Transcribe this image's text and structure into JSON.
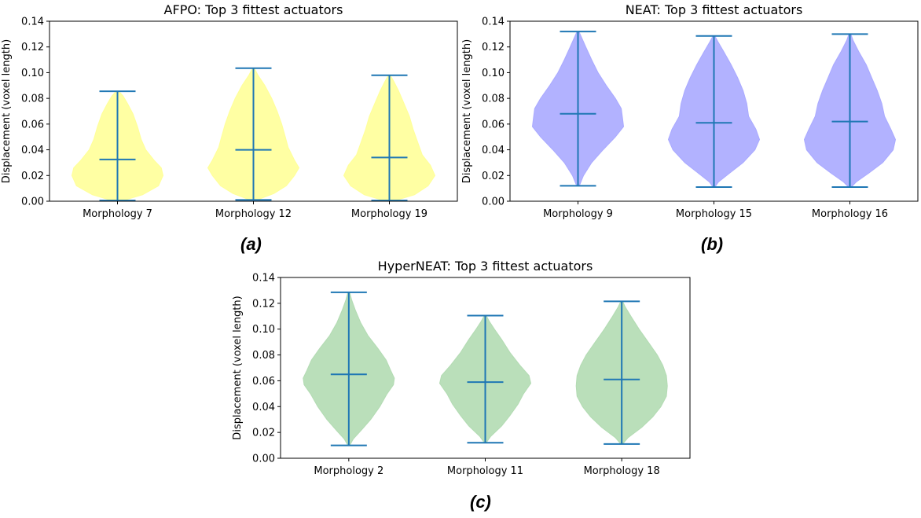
{
  "chart_data": [
    {
      "type": "violin",
      "title": "AFPO: Top 3 fittest actuators",
      "panel_label": "(a)",
      "xlabel": "",
      "ylabel": "Displacement (voxel length)",
      "ylim": [
        0,
        0.14
      ],
      "yticks": [
        "0.00",
        "0.02",
        "0.04",
        "0.06",
        "0.08",
        "0.10",
        "0.12",
        "0.14"
      ],
      "fill_color": "#ffff99",
      "line_color": "#1f77b4",
      "categories": [
        "Morphology 7",
        "Morphology 12",
        "Morphology 19"
      ],
      "series": [
        {
          "name": "Morphology 7",
          "min": 0.0005,
          "max": 0.0855,
          "median": 0.0325,
          "profile": [
            [
              0.0005,
              0.12
            ],
            [
              0.005,
              0.55
            ],
            [
              0.012,
              0.9
            ],
            [
              0.02,
              1.0
            ],
            [
              0.026,
              0.96
            ],
            [
              0.032,
              0.8
            ],
            [
              0.04,
              0.62
            ],
            [
              0.048,
              0.52
            ],
            [
              0.058,
              0.44
            ],
            [
              0.068,
              0.34
            ],
            [
              0.076,
              0.22
            ],
            [
              0.082,
              0.12
            ],
            [
              0.0855,
              0.03
            ]
          ]
        },
        {
          "name": "Morphology 12",
          "min": 0.001,
          "max": 0.1035,
          "median": 0.04,
          "profile": [
            [
              0.001,
              0.08
            ],
            [
              0.006,
              0.45
            ],
            [
              0.012,
              0.72
            ],
            [
              0.02,
              0.9
            ],
            [
              0.026,
              1.0
            ],
            [
              0.032,
              0.9
            ],
            [
              0.042,
              0.76
            ],
            [
              0.05,
              0.7
            ],
            [
              0.06,
              0.62
            ],
            [
              0.07,
              0.52
            ],
            [
              0.08,
              0.4
            ],
            [
              0.09,
              0.25
            ],
            [
              0.098,
              0.1
            ],
            [
              0.1035,
              0.02
            ]
          ]
        },
        {
          "name": "Morphology 19",
          "min": 0.0005,
          "max": 0.098,
          "median": 0.034,
          "profile": [
            [
              0.0005,
              0.12
            ],
            [
              0.005,
              0.55
            ],
            [
              0.012,
              0.85
            ],
            [
              0.02,
              1.0
            ],
            [
              0.028,
              0.9
            ],
            [
              0.036,
              0.72
            ],
            [
              0.046,
              0.62
            ],
            [
              0.056,
              0.52
            ],
            [
              0.066,
              0.44
            ],
            [
              0.076,
              0.32
            ],
            [
              0.086,
              0.2
            ],
            [
              0.093,
              0.1
            ],
            [
              0.098,
              0.02
            ]
          ]
        }
      ]
    },
    {
      "type": "violin",
      "title": "NEAT: Top 3 fittest actuators",
      "panel_label": "(b)",
      "xlabel": "",
      "ylabel": "Displacement (voxel length)",
      "ylim": [
        0,
        0.14
      ],
      "yticks": [
        "0.00",
        "0.02",
        "0.04",
        "0.06",
        "0.08",
        "0.10",
        "0.12",
        "0.14"
      ],
      "fill_color": "#aaaaff",
      "line_color": "#1f77b4",
      "categories": [
        "Morphology 9",
        "Morphology 15",
        "Morphology 16"
      ],
      "series": [
        {
          "name": "Morphology 9",
          "min": 0.012,
          "max": 0.132,
          "median": 0.068,
          "profile": [
            [
              0.012,
              0.03
            ],
            [
              0.02,
              0.12
            ],
            [
              0.03,
              0.3
            ],
            [
              0.04,
              0.55
            ],
            [
              0.05,
              0.82
            ],
            [
              0.058,
              1.0
            ],
            [
              0.064,
              0.98
            ],
            [
              0.072,
              0.95
            ],
            [
              0.08,
              0.82
            ],
            [
              0.09,
              0.62
            ],
            [
              0.1,
              0.44
            ],
            [
              0.11,
              0.3
            ],
            [
              0.12,
              0.17
            ],
            [
              0.128,
              0.07
            ],
            [
              0.132,
              0.02
            ]
          ]
        },
        {
          "name": "Morphology 15",
          "min": 0.011,
          "max": 0.1285,
          "median": 0.061,
          "profile": [
            [
              0.011,
              0.02
            ],
            [
              0.015,
              0.1
            ],
            [
              0.022,
              0.35
            ],
            [
              0.03,
              0.64
            ],
            [
              0.04,
              0.9
            ],
            [
              0.048,
              1.0
            ],
            [
              0.056,
              0.92
            ],
            [
              0.066,
              0.76
            ],
            [
              0.076,
              0.72
            ],
            [
              0.086,
              0.64
            ],
            [
              0.096,
              0.52
            ],
            [
              0.106,
              0.38
            ],
            [
              0.116,
              0.22
            ],
            [
              0.124,
              0.09
            ],
            [
              0.1285,
              0.02
            ]
          ]
        },
        {
          "name": "Morphology 16",
          "min": 0.011,
          "max": 0.13,
          "median": 0.062,
          "profile": [
            [
              0.011,
              0.03
            ],
            [
              0.015,
              0.14
            ],
            [
              0.022,
              0.42
            ],
            [
              0.03,
              0.72
            ],
            [
              0.04,
              0.95
            ],
            [
              0.048,
              1.0
            ],
            [
              0.056,
              0.9
            ],
            [
              0.066,
              0.76
            ],
            [
              0.076,
              0.7
            ],
            [
              0.086,
              0.6
            ],
            [
              0.096,
              0.48
            ],
            [
              0.106,
              0.36
            ],
            [
              0.116,
              0.2
            ],
            [
              0.125,
              0.07
            ],
            [
              0.13,
              0.02
            ]
          ]
        }
      ]
    },
    {
      "type": "violin",
      "title": "HyperNEAT: Top 3 fittest actuators",
      "panel_label": "(c)",
      "xlabel": "",
      "ylabel": "Displacement (voxel length)",
      "ylim": [
        0,
        0.14
      ],
      "yticks": [
        "0.00",
        "0.02",
        "0.04",
        "0.06",
        "0.08",
        "0.10",
        "0.12",
        "0.14"
      ],
      "fill_color": "#b3dbb3",
      "line_color": "#1f77b4",
      "categories": [
        "Morphology 2",
        "Morphology 11",
        "Morphology 18"
      ],
      "series": [
        {
          "name": "Morphology 2",
          "min": 0.01,
          "max": 0.1285,
          "median": 0.065,
          "profile": [
            [
              0.01,
              0.02
            ],
            [
              0.015,
              0.1
            ],
            [
              0.022,
              0.28
            ],
            [
              0.03,
              0.48
            ],
            [
              0.04,
              0.68
            ],
            [
              0.05,
              0.84
            ],
            [
              0.057,
              0.98
            ],
            [
              0.062,
              1.0
            ],
            [
              0.068,
              0.92
            ],
            [
              0.076,
              0.82
            ],
            [
              0.085,
              0.64
            ],
            [
              0.095,
              0.42
            ],
            [
              0.105,
              0.26
            ],
            [
              0.115,
              0.14
            ],
            [
              0.123,
              0.06
            ],
            [
              0.1285,
              0.02
            ]
          ]
        },
        {
          "name": "Morphology 11",
          "min": 0.012,
          "max": 0.1105,
          "median": 0.059,
          "profile": [
            [
              0.012,
              0.02
            ],
            [
              0.017,
              0.12
            ],
            [
              0.025,
              0.36
            ],
            [
              0.033,
              0.54
            ],
            [
              0.042,
              0.72
            ],
            [
              0.05,
              0.84
            ],
            [
              0.058,
              1.0
            ],
            [
              0.064,
              0.96
            ],
            [
              0.072,
              0.76
            ],
            [
              0.082,
              0.54
            ],
            [
              0.092,
              0.36
            ],
            [
              0.1,
              0.2
            ],
            [
              0.106,
              0.09
            ],
            [
              0.1105,
              0.02
            ]
          ]
        },
        {
          "name": "Morphology 18",
          "min": 0.011,
          "max": 0.1215,
          "median": 0.061,
          "profile": [
            [
              0.011,
              0.02
            ],
            [
              0.016,
              0.14
            ],
            [
              0.024,
              0.44
            ],
            [
              0.032,
              0.68
            ],
            [
              0.04,
              0.86
            ],
            [
              0.048,
              0.98
            ],
            [
              0.056,
              1.0
            ],
            [
              0.064,
              0.98
            ],
            [
              0.072,
              0.9
            ],
            [
              0.08,
              0.78
            ],
            [
              0.09,
              0.58
            ],
            [
              0.1,
              0.38
            ],
            [
              0.11,
              0.2
            ],
            [
              0.117,
              0.08
            ],
            [
              0.1215,
              0.02
            ]
          ]
        }
      ]
    }
  ]
}
